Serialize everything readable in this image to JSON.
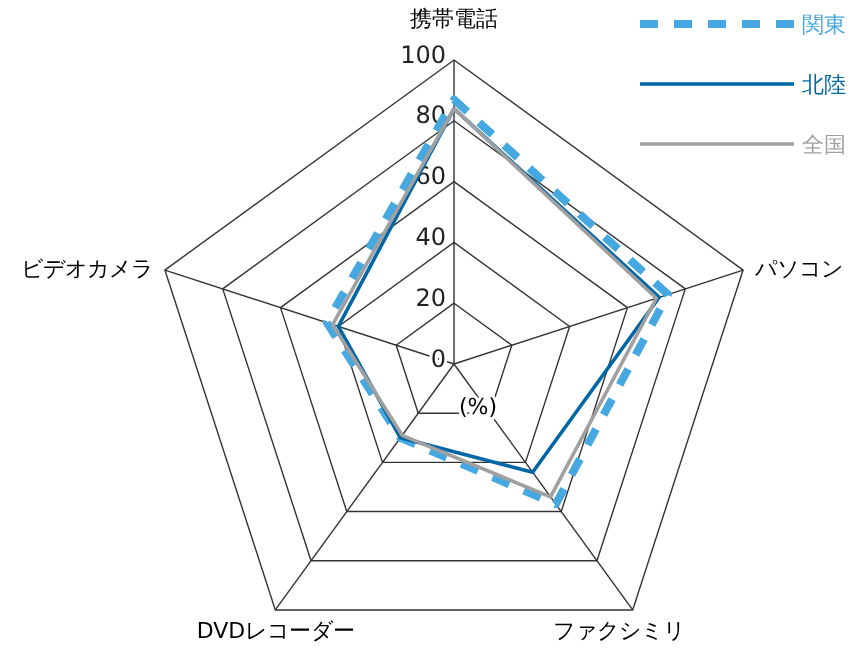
{
  "chart_data": {
    "type": "radar",
    "categories": [
      "携帯電話",
      "パソコン",
      "ファクシミリ",
      "DVDレコーダー",
      "ビデオカメラ"
    ],
    "series": [
      {
        "name": "関東",
        "color": "#45a8e0",
        "line_style": "dashed",
        "values": [
          87,
          74,
          57,
          30,
          44
        ]
      },
      {
        "name": "北陸",
        "color": "#0066a6",
        "line_style": "solid",
        "values": [
          84,
          71,
          44,
          30,
          40
        ]
      },
      {
        "name": "全国",
        "color": "#a0a0a0",
        "line_style": "solid",
        "values": [
          84,
          70,
          54,
          29,
          42
        ]
      }
    ],
    "ylim": [
      0,
      100
    ],
    "yticks": [
      0,
      20,
      40,
      60,
      80,
      100
    ],
    "legend": "top right",
    "marker": "none",
    "grid": true,
    "annotations": [
      "(%)"
    ]
  }
}
